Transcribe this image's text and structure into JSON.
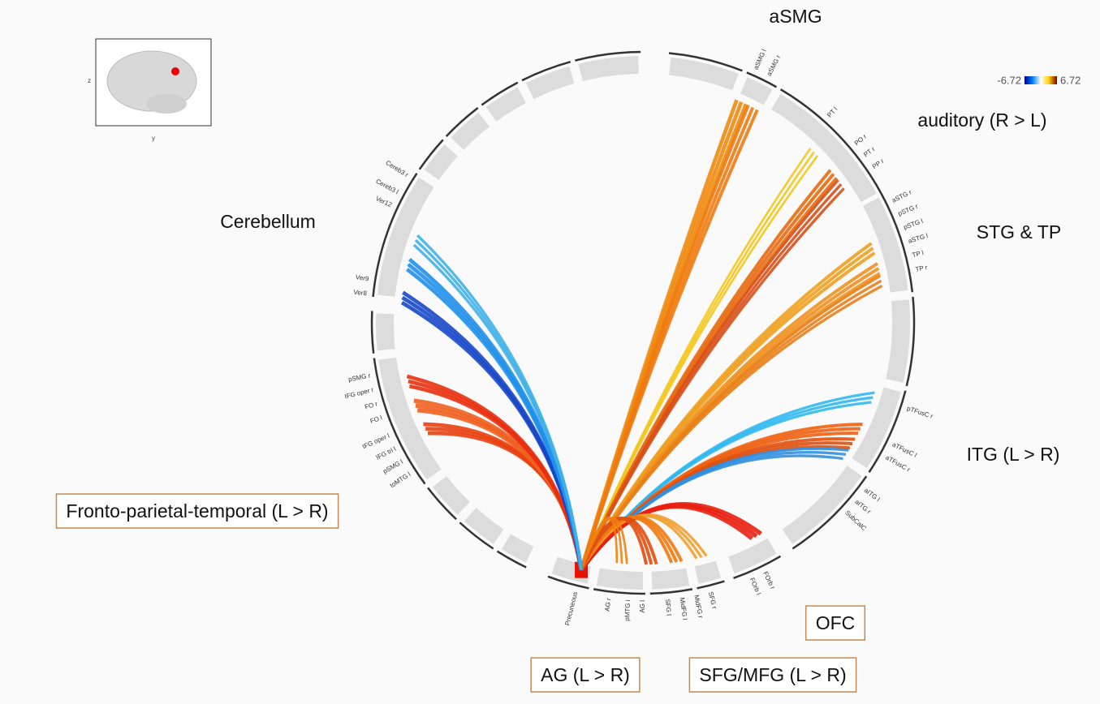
{
  "colorbar": {
    "min": "-6.72",
    "max": "6.72"
  },
  "inset": {
    "axis_left": "z",
    "axis_bottom": "y"
  },
  "groups": [
    {
      "label": "aSMG"
    },
    {
      "label": "auditory (R > L)"
    },
    {
      "label": "STG & TP"
    },
    {
      "label": "Cerebellum"
    },
    {
      "label": "ITG (L > R)"
    },
    {
      "label": "Fronto-parietal-temporal (L > R)"
    },
    {
      "label": "OFC"
    },
    {
      "label": "AG (L > R)"
    },
    {
      "label": "SFG/MFG (L > R)"
    }
  ],
  "rois": [
    "aSMG l",
    "aSMG r",
    "PT l",
    "PO r",
    "PT r",
    "PP r",
    "aSTG r",
    "pSTG r",
    "pSTG l",
    "aSTG l",
    "TP l",
    "TP r",
    "pTFusC r",
    "aTFusC l",
    "aTFusC r",
    "aITG l",
    "aITG r",
    "SubCalC",
    "FOrb r",
    "FOrb l",
    "SFG r",
    "MidFG r",
    "MidFG l",
    "SFG l",
    "AG l",
    "pMTG l",
    "AG r",
    "Precuneous",
    "toMTG l",
    "pSMG l",
    "IFG tri l",
    "IFG oper l",
    "FO l",
    "FO r",
    "IFG oper r",
    "pSMG r",
    "Ver8",
    "Ver9",
    "Ver12",
    "Cereb3 l",
    "Cereb3 r"
  ]
}
